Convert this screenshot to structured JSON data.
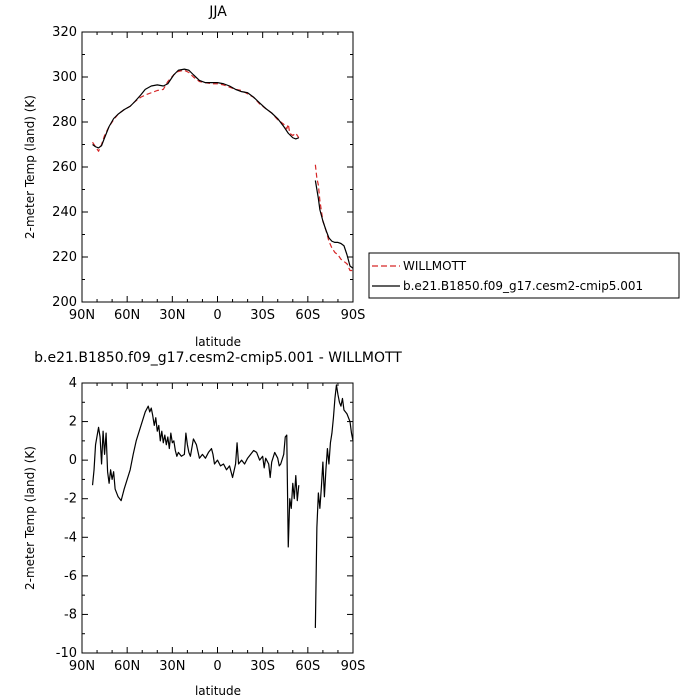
{
  "chart_data": [
    {
      "type": "line",
      "title": "JJA",
      "xlabel": "latitude",
      "ylabel": "2-meter Temp (land) (K)",
      "xlim": [
        90,
        -90
      ],
      "ylim": [
        200,
        320
      ],
      "xticks": [
        90,
        60,
        30,
        0,
        -30,
        -60,
        -90
      ],
      "xtick_labels": [
        "90N",
        "60N",
        "30N",
        "0",
        "30S",
        "60S",
        "90S"
      ],
      "yticks": [
        200,
        220,
        240,
        260,
        280,
        300,
        320
      ],
      "ytick_labels": [
        "200",
        "220",
        "240",
        "260",
        "280",
        "300",
        "320"
      ],
      "grid": false,
      "legend_position": "right",
      "series": [
        {
          "name": "WILLMOTT",
          "color": "#d62728",
          "dash": "dashed",
          "segments": [
            [
              [
                83,
                271
              ],
              [
                81,
                269
              ],
              [
                79,
                267
              ],
              [
                77,
                270
              ],
              [
                75,
                274
              ],
              [
                72,
                278
              ],
              [
                69,
                281
              ],
              [
                66,
                283.5
              ],
              [
                62,
                285.5
              ],
              [
                58,
                287
              ],
              [
                55,
                289
              ],
              [
                51,
                291
              ],
              [
                48,
                292
              ],
              [
                44,
                293
              ],
              [
                40,
                294
              ],
              [
                36,
                294.5
              ],
              [
                33,
                298
              ],
              [
                29,
                301
              ],
              [
                26,
                302.5
              ],
              [
                22,
                303
              ],
              [
                19,
                302
              ],
              [
                16,
                300
              ],
              [
                12,
                298
              ],
              [
                8,
                297.5
              ],
              [
                4,
                297
              ],
              [
                0,
                297
              ],
              [
                -4,
                296.5
              ],
              [
                -8,
                295.5
              ],
              [
                -12,
                294.5
              ],
              [
                -16,
                294
              ],
              [
                -20,
                292.5
              ],
              [
                -24,
                291
              ],
              [
                -28,
                288
              ],
              [
                -32,
                286
              ],
              [
                -36,
                284
              ],
              [
                -40,
                281
              ],
              [
                -44,
                279
              ],
              [
                -46,
                277
              ],
              [
                -47,
                279
              ],
              [
                -48,
                275
              ],
              [
                -50,
                274
              ],
              [
                -52,
                275
              ],
              [
                -54,
                273
              ]
            ],
            [
              [
                -65,
                261
              ],
              [
                -66,
                255
              ],
              [
                -67,
                252
              ],
              [
                -68,
                245
              ],
              [
                -70,
                236
              ],
              [
                -72,
                232
              ],
              [
                -74,
                227
              ],
              [
                -76,
                224
              ],
              [
                -78,
                222
              ],
              [
                -80,
                221
              ],
              [
                -82,
                219
              ],
              [
                -84,
                218
              ],
              [
                -86,
                217
              ],
              [
                -88,
                214
              ],
              [
                -90,
                214
              ]
            ]
          ]
        },
        {
          "name": "b.e21.B1850.f09_g17.cesm2-cmip5.001",
          "color": "#000000",
          "dash": "solid",
          "segments": [
            [
              [
                83,
                270
              ],
              [
                81,
                269
              ],
              [
                79,
                268.5
              ],
              [
                77,
                269.5
              ],
              [
                75,
                273
              ],
              [
                72,
                278
              ],
              [
                69,
                281.5
              ],
              [
                66,
                283.5
              ],
              [
                62,
                285.5
              ],
              [
                58,
                287
              ],
              [
                55,
                289
              ],
              [
                51,
                292
              ],
              [
                48,
                294.5
              ],
              [
                44,
                296
              ],
              [
                40,
                296.5
              ],
              [
                36,
                296
              ],
              [
                33,
                297
              ],
              [
                29,
                301
              ],
              [
                26,
                303
              ],
              [
                22,
                303.5
              ],
              [
                19,
                303
              ],
              [
                16,
                301
              ],
              [
                12,
                298.5
              ],
              [
                8,
                297.5
              ],
              [
                4,
                297.5
              ],
              [
                0,
                297.5
              ],
              [
                -4,
                297
              ],
              [
                -8,
                296
              ],
              [
                -12,
                294.5
              ],
              [
                -16,
                293.5
              ],
              [
                -20,
                293
              ],
              [
                -24,
                291
              ],
              [
                -28,
                288.5
              ],
              [
                -32,
                286
              ],
              [
                -36,
                284
              ],
              [
                -40,
                281.5
              ],
              [
                -44,
                278
              ],
              [
                -47,
                275
              ],
              [
                -50,
                273
              ],
              [
                -52,
                272.5
              ],
              [
                -54,
                273
              ]
            ],
            [
              [
                -65,
                254
              ],
              [
                -66,
                250
              ],
              [
                -67,
                246
              ],
              [
                -68,
                241
              ],
              [
                -70,
                236
              ],
              [
                -72,
                232
              ],
              [
                -74,
                228.5
              ],
              [
                -76,
                227
              ],
              [
                -78,
                226.5
              ],
              [
                -80,
                226.5
              ],
              [
                -82,
                226
              ],
              [
                -84,
                225
              ],
              [
                -86,
                221
              ],
              [
                -88,
                216
              ],
              [
                -90,
                215
              ]
            ]
          ]
        }
      ]
    },
    {
      "type": "line",
      "title": "b.e21.B1850.f09_g17.cesm2-cmip5.001 - WILLMOTT",
      "xlabel": "latitude",
      "ylabel": "2-meter Temp (land) (K)",
      "xlim": [
        90,
        -90
      ],
      "ylim": [
        -10,
        4
      ],
      "xticks": [
        90,
        60,
        30,
        0,
        -30,
        -60,
        -90
      ],
      "xtick_labels": [
        "90N",
        "60N",
        "30N",
        "0",
        "30S",
        "60S",
        "90S"
      ],
      "yticks": [
        -10,
        -8,
        -6,
        -4,
        -2,
        0,
        2,
        4
      ],
      "ytick_labels": [
        "-10",
        "-8",
        "-6",
        "-4",
        "-2",
        "0",
        "2",
        "4"
      ],
      "grid": false,
      "series": [
        {
          "color": "#000000",
          "dash": "solid",
          "segments": [
            [
              [
                83,
                -1.3
              ],
              [
                82,
                -0.5
              ],
              [
                81,
                0.8
              ],
              [
                79,
                1.7
              ],
              [
                78,
                1.2
              ],
              [
                77,
                -0.2
              ],
              [
                76,
                1.5
              ],
              [
                75,
                0.3
              ],
              [
                74,
                1.4
              ],
              [
                73,
                -0.6
              ],
              [
                72,
                -1.2
              ],
              [
                71,
                -0.5
              ],
              [
                70,
                -1.0
              ],
              [
                69,
                -0.6
              ],
              [
                68,
                -1.5
              ],
              [
                66,
                -1.9
              ],
              [
                64,
                -2.1
              ],
              [
                62,
                -1.5
              ],
              [
                60,
                -1.0
              ],
              [
                58,
                -0.5
              ],
              [
                56,
                0.3
              ],
              [
                54,
                1.0
              ],
              [
                52,
                1.5
              ],
              [
                50,
                2.0
              ],
              [
                48,
                2.5
              ],
              [
                46,
                2.8
              ],
              [
                45,
                2.5
              ],
              [
                44,
                2.7
              ],
              [
                43,
                2.3
              ],
              [
                42,
                1.8
              ],
              [
                41,
                2.2
              ],
              [
                40,
                1.5
              ],
              [
                39,
                1.8
              ],
              [
                38,
                1.0
              ],
              [
                37,
                1.5
              ],
              [
                36,
                0.9
              ],
              [
                35,
                1.3
              ],
              [
                34,
                0.8
              ],
              [
                33,
                1.2
              ],
              [
                32,
                0.6
              ],
              [
                31,
                1.4
              ],
              [
                30,
                0.9
              ],
              [
                29,
                1.0
              ],
              [
                28,
                0.5
              ],
              [
                27,
                0.2
              ],
              [
                26,
                0.4
              ],
              [
                24,
                0.2
              ],
              [
                22,
                0.3
              ],
              [
                21,
                1.4
              ],
              [
                20,
                0.8
              ],
              [
                19,
                0.4
              ],
              [
                18,
                0.2
              ],
              [
                16,
                1.1
              ],
              [
                14,
                0.8
              ],
              [
                12,
                0.1
              ],
              [
                10,
                0.3
              ],
              [
                8,
                0.1
              ],
              [
                6,
                0.4
              ],
              [
                4,
                0.6
              ],
              [
                3,
                0.3
              ],
              [
                2,
                -0.2
              ],
              [
                0,
                0.0
              ],
              [
                -2,
                -0.3
              ],
              [
                -4,
                -0.2
              ],
              [
                -6,
                -0.5
              ],
              [
                -8,
                -0.3
              ],
              [
                -10,
                -0.9
              ],
              [
                -12,
                -0.2
              ],
              [
                -13,
                0.9
              ],
              [
                -14,
                -0.2
              ],
              [
                -16,
                0.0
              ],
              [
                -18,
                -0.2
              ],
              [
                -20,
                0.1
              ],
              [
                -22,
                0.3
              ],
              [
                -24,
                0.5
              ],
              [
                -26,
                0.4
              ],
              [
                -28,
                0.0
              ],
              [
                -30,
                0.2
              ],
              [
                -31,
                -0.4
              ],
              [
                -32,
                0.1
              ],
              [
                -34,
                -0.2
              ],
              [
                -35,
                -0.9
              ],
              [
                -36,
                -0.1
              ],
              [
                -38,
                0.4
              ],
              [
                -40,
                0.1
              ],
              [
                -41,
                -0.3
              ],
              [
                -42,
                -0.2
              ],
              [
                -44,
                0.3
              ],
              [
                -45,
                1.2
              ],
              [
                -46,
                1.3
              ],
              [
                -47,
                -4.5
              ],
              [
                -48,
                -2.0
              ],
              [
                -49,
                -2.5
              ],
              [
                -50,
                -1.2
              ],
              [
                -51,
                -2.0
              ],
              [
                -52,
                -0.8
              ],
              [
                -53,
                -2.1
              ],
              [
                -54,
                -1.3
              ]
            ],
            [
              [
                -65,
                -8.7
              ],
              [
                -66,
                -3.5
              ],
              [
                -67,
                -1.7
              ],
              [
                -68,
                -2.5
              ],
              [
                -69,
                -1.4
              ],
              [
                -70,
                -0.1
              ],
              [
                -71,
                -1.9
              ],
              [
                -72,
                -0.5
              ],
              [
                -73,
                0.6
              ],
              [
                -74,
                -0.2
              ],
              [
                -75,
                0.9
              ],
              [
                -76,
                1.4
              ],
              [
                -77,
                2.2
              ],
              [
                -78,
                3.2
              ],
              [
                -79,
                3.9
              ],
              [
                -80,
                3.4
              ],
              [
                -81,
                3.0
              ],
              [
                -82,
                2.8
              ],
              [
                -83,
                3.2
              ],
              [
                -84,
                2.6
              ],
              [
                -86,
                2.4
              ],
              [
                -88,
                2.0
              ],
              [
                -89,
                1.4
              ],
              [
                -90,
                1.0
              ]
            ]
          ]
        }
      ]
    }
  ]
}
